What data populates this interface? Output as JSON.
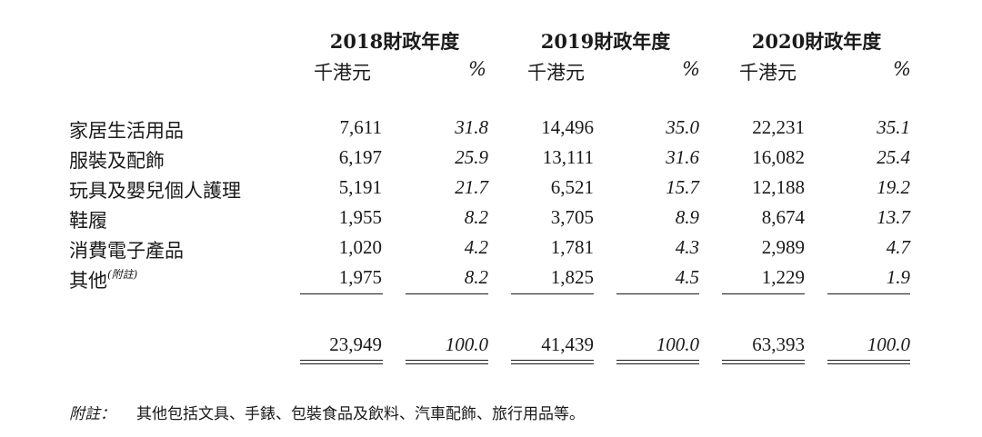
{
  "years": [
    {
      "title": "2018財政年度",
      "unit": "千港元",
      "pct": "%"
    },
    {
      "title": "2019財政年度",
      "unit": "千港元",
      "pct": "%"
    },
    {
      "title": "2020財政年度",
      "unit": "千港元",
      "pct": "%"
    }
  ],
  "rows": [
    {
      "label": "家居生活用品",
      "note": "",
      "values": [
        "7,611",
        "31.8",
        "14,496",
        "35.0",
        "22,231",
        "35.1"
      ]
    },
    {
      "label": "服裝及配飾",
      "note": "",
      "values": [
        "6,197",
        "25.9",
        "13,111",
        "31.6",
        "16,082",
        "25.4"
      ]
    },
    {
      "label": "玩具及嬰兒個人護理",
      "note": "",
      "values": [
        "5,191",
        "21.7",
        "6,521",
        "15.7",
        "12,188",
        "19.2"
      ]
    },
    {
      "label": "鞋履",
      "note": "",
      "values": [
        "1,955",
        "8.2",
        "3,705",
        "8.9",
        "8,674",
        "13.7"
      ]
    },
    {
      "label": "消費電子產品",
      "note": "",
      "values": [
        "1,020",
        "4.2",
        "1,781",
        "4.3",
        "2,989",
        "4.7"
      ]
    },
    {
      "label": "其他",
      "note": "(附註)",
      "values": [
        "1,975",
        "8.2",
        "1,825",
        "4.5",
        "1,229",
        "1.9"
      ]
    }
  ],
  "totals": [
    "23,949",
    "100.0",
    "41,439",
    "100.0",
    "63,393",
    "100.0"
  ],
  "footnote": {
    "label": "附註：",
    "text": "其他包括文具、手錶、包裝食品及飲料、汽車配飾、旅行用品等。"
  }
}
